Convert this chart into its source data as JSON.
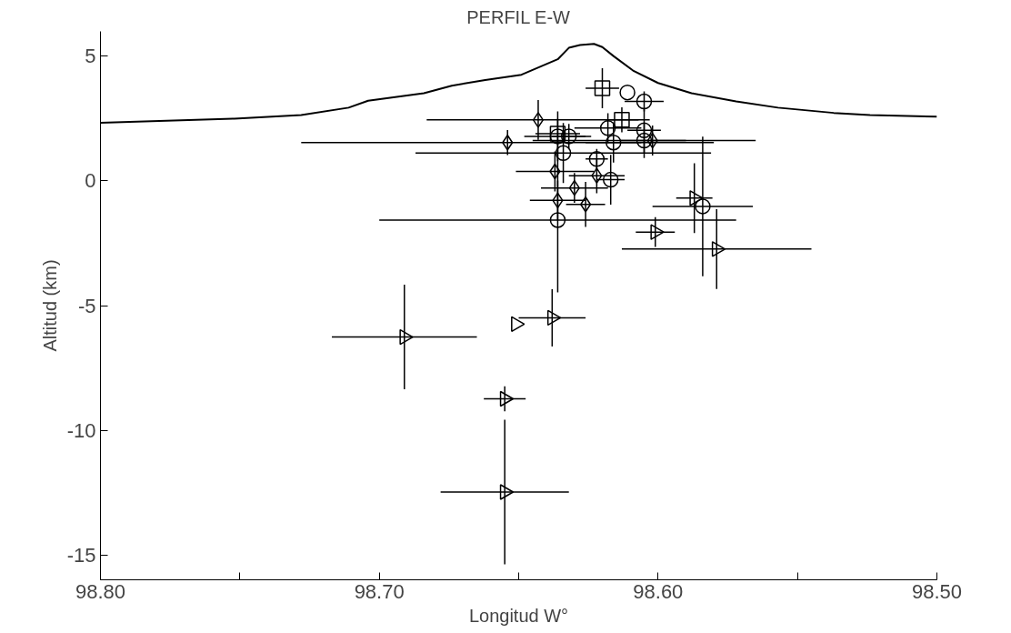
{
  "chart_data": {
    "type": "scatter",
    "title": "PERFIL E-W",
    "xlabel": "Longitud W°",
    "ylabel": "Altitud (km)",
    "xlim": [
      98.8,
      98.5
    ],
    "ylim": [
      -16,
      6
    ],
    "xticks": [
      {
        "value": 98.8,
        "label": "98.80"
      },
      {
        "value": 98.75,
        "label": null
      },
      {
        "value": 98.7,
        "label": "98.70"
      },
      {
        "value": 98.65,
        "label": null
      },
      {
        "value": 98.6,
        "label": "98.60"
      },
      {
        "value": 98.55,
        "label": null
      },
      {
        "value": 98.5,
        "label": "98.50"
      }
    ],
    "yticks": [
      5,
      0,
      -5,
      -10,
      -15
    ],
    "grid": false,
    "series": [
      {
        "type": "line",
        "line_style": "solid",
        "color": "#000000",
        "x": [
          98.8,
          98.752,
          98.728,
          98.711,
          98.704,
          98.684,
          98.674,
          98.662,
          98.649,
          98.636,
          98.632,
          98.628,
          98.623,
          98.62,
          98.616,
          98.609,
          98.6,
          98.588,
          98.572,
          98.557,
          98.537,
          98.524,
          98.5
        ],
        "values": [
          2.33,
          2.5,
          2.64,
          2.94,
          3.22,
          3.52,
          3.82,
          4.05,
          4.26,
          4.88,
          5.34,
          5.45,
          5.5,
          5.37,
          5.01,
          4.43,
          3.93,
          3.52,
          3.19,
          2.94,
          2.73,
          2.64,
          2.58
        ]
      },
      {
        "marker": "triangle",
        "color": "#000000",
        "x": [
          98.638,
          98.651,
          98.655,
          98.655,
          98.691,
          98.601,
          98.579,
          98.587
        ],
        "values": [
          -5.49,
          -5.74,
          -8.74,
          -12.48,
          -6.26,
          -2.05,
          -2.73,
          -0.69
        ],
        "xerrors": [
          0.012,
          null,
          0.0075,
          0.023,
          0.026,
          0.007,
          0.034,
          0.0065
        ],
        "errors": [
          1.15,
          null,
          0.5,
          2.9,
          2.1,
          0.6,
          1.6,
          1.4
        ]
      },
      {
        "marker": "circle",
        "color": "#000000",
        "x": [
          98.584,
          98.636,
          98.617,
          98.634,
          98.616,
          98.605,
          98.636,
          98.611,
          98.605,
          98.618,
          98.622,
          98.605,
          98.632
        ],
        "values": [
          -1.02,
          -1.57,
          0.05,
          1.12,
          1.54,
          1.62,
          1.79,
          3.55,
          3.19,
          2.12,
          0.88,
          2.03,
          1.79
        ],
        "xerrors": [
          0.018,
          0.064,
          0.005,
          0.053,
          0.01,
          0.04,
          0.012,
          null,
          0.007,
          0.012,
          0.004,
          0.006,
          0.006
        ],
        "errors": [
          2.8,
          2.9,
          1.0,
          1.2,
          0.8,
          0.7,
          1.0,
          null,
          0.4,
          0.6,
          0.4,
          0.9,
          0.5
        ]
      },
      {
        "marker": "square",
        "color": "#000000",
        "x": [
          98.62,
          98.613,
          98.636
        ],
        "values": [
          3.72,
          2.45,
          1.9
        ],
        "xerrors": [
          0.006,
          0.006,
          0.008
        ],
        "errors": [
          0.8,
          0.5,
          0.6
        ]
      },
      {
        "marker": "diamond",
        "color": "#000000",
        "x": [
          98.643,
          98.654,
          98.63,
          98.626,
          98.622,
          98.602,
          98.637,
          98.636
        ],
        "values": [
          2.45,
          1.54,
          -0.28,
          -0.94,
          0.21,
          1.62,
          0.38,
          -0.78
        ],
        "xerrors": [
          0.04,
          0.074,
          0.012,
          0.007,
          0.01,
          0.012,
          0.014,
          0.01
        ],
        "errors": [
          0.8,
          0.5,
          0.6,
          0.9,
          0.7,
          0.6,
          0.8,
          0.8
        ]
      }
    ]
  }
}
